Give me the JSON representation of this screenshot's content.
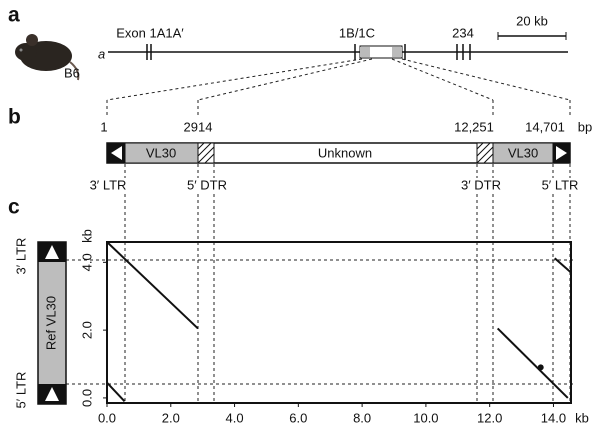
{
  "panel_labels": [
    "a",
    "b",
    "c"
  ],
  "locus": {
    "strain": "B6",
    "gene": "a",
    "exon_labels": [
      "Exon 1A1A′",
      "1B/1C",
      "234"
    ],
    "scale_bar": "20 kb"
  },
  "map": {
    "position_labels": [
      "1",
      "2914",
      "12,251",
      "14,701"
    ],
    "unit": "bp",
    "segments": [
      "VL30",
      "Unknown",
      "VL30"
    ],
    "features": [
      "3′ LTR",
      "5′ DTR",
      "3′ DTR",
      "5′ LTR"
    ]
  },
  "dotplot": {
    "xlim": [
      0,
      14.55
    ],
    "ylim": [
      -0.15,
      4.6
    ],
    "xticks": [
      {
        "value": 0,
        "label": "0.0"
      },
      {
        "value": 2,
        "label": "2.0"
      },
      {
        "value": 4,
        "label": "4.0"
      },
      {
        "value": 6,
        "label": "6.0"
      },
      {
        "value": 8,
        "label": "8.0"
      },
      {
        "value": 10,
        "label": "10.0"
      },
      {
        "value": 12,
        "label": "12.0"
      },
      {
        "value": 14,
        "label": "14.0"
      }
    ],
    "yticks": [
      {
        "value": 0,
        "label": "0.0"
      },
      {
        "value": 2,
        "label": "2.0"
      },
      {
        "value": 4,
        "label": "4.0"
      }
    ],
    "x_label": "kb",
    "y_label": "kb",
    "ref_label": "Ref VL30",
    "ref_features": [
      "3′ LTR",
      "5′ LTR"
    ],
    "segments": [
      {
        "x": [
          0,
          2.85
        ],
        "y": [
          4.6,
          2.05
        ]
      },
      {
        "x": [
          12.25,
          14.45
        ],
        "y": [
          2.05,
          0.0
        ]
      },
      {
        "x": [
          14.04,
          14.55
        ],
        "y": [
          4.12,
          3.7
        ]
      },
      {
        "x": [
          0,
          0.55
        ],
        "y": [
          0.45,
          -0.1
        ]
      }
    ],
    "points": [
      {
        "x": 13.6,
        "y": 0.9
      }
    ]
  }
}
